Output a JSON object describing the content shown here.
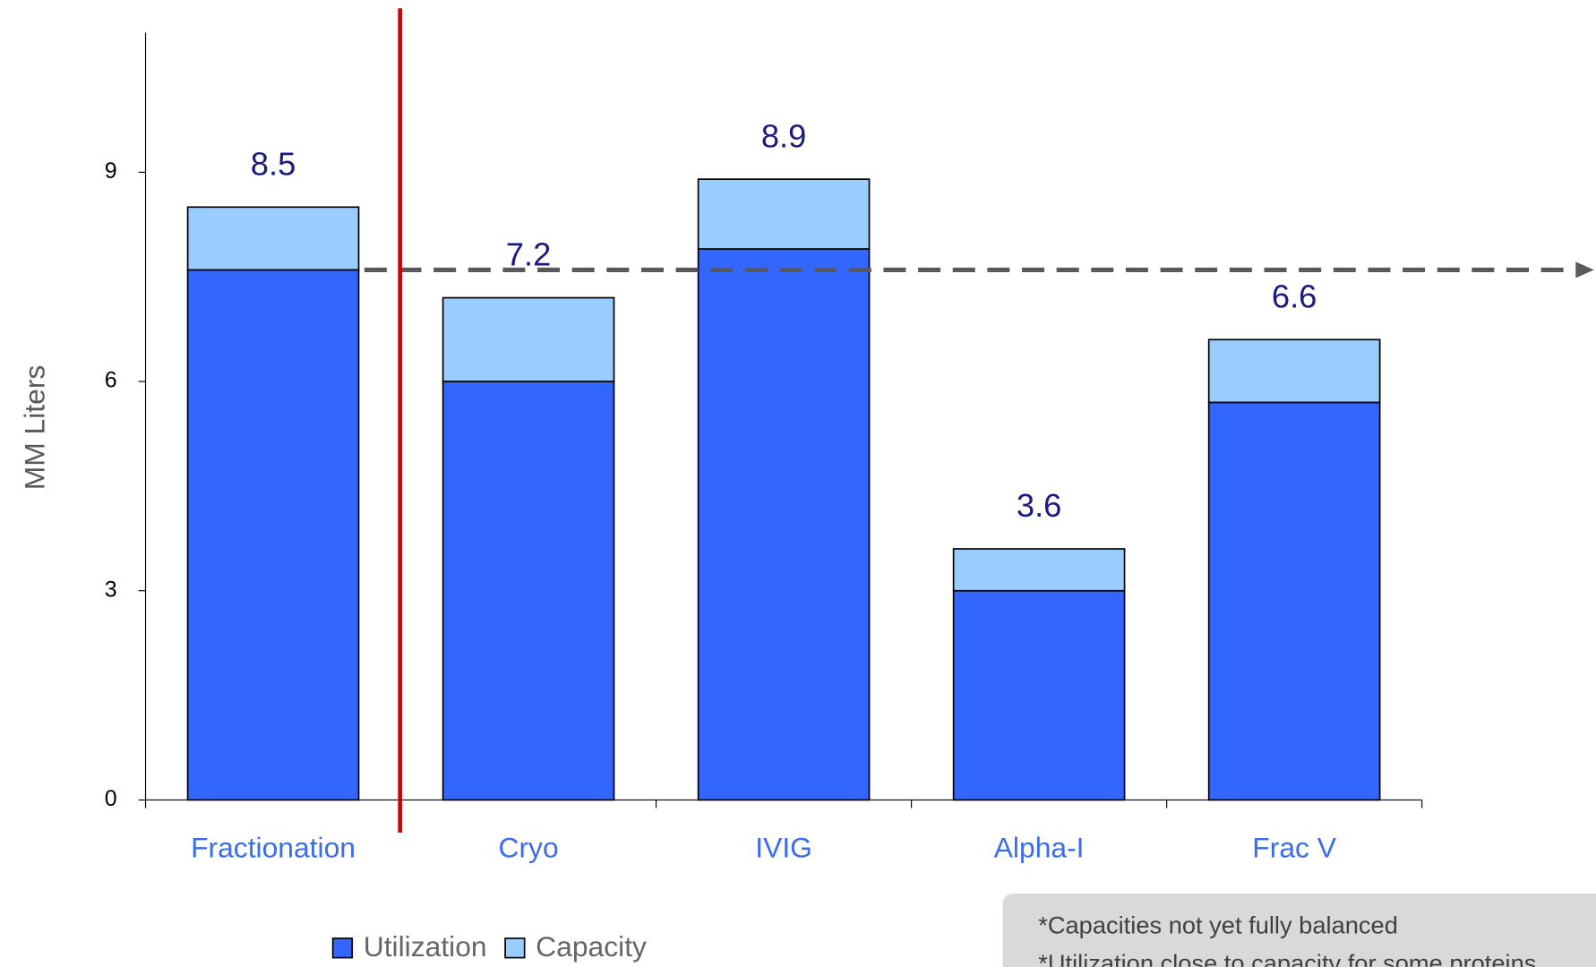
{
  "chart_data": {
    "type": "stacked_bar",
    "y_axis_label": "MM Liters",
    "categories": [
      "Fractionation",
      "Cryo",
      "IVIG",
      "Alpha-I",
      "Frac V"
    ],
    "series": [
      {
        "name": "Utilization",
        "color": "#3366ff",
        "values": [
          7.6,
          6.0,
          7.9,
          3.0,
          5.7
        ]
      },
      {
        "name": "Capacity",
        "color": "#99ccff",
        "values": [
          0.9,
          1.2,
          1.0,
          0.6,
          0.9
        ]
      }
    ],
    "totals": [
      8.5,
      7.2,
      8.9,
      3.6,
      6.6
    ],
    "reference_line": 7.6,
    "ylim": [
      0,
      11
    ],
    "yticks": [
      0,
      3,
      6,
      9
    ],
    "legend": "bottom",
    "notes": [
      "*Capacities not yet fully balanced",
      "*Utilization close to capacity for some proteins"
    ]
  }
}
